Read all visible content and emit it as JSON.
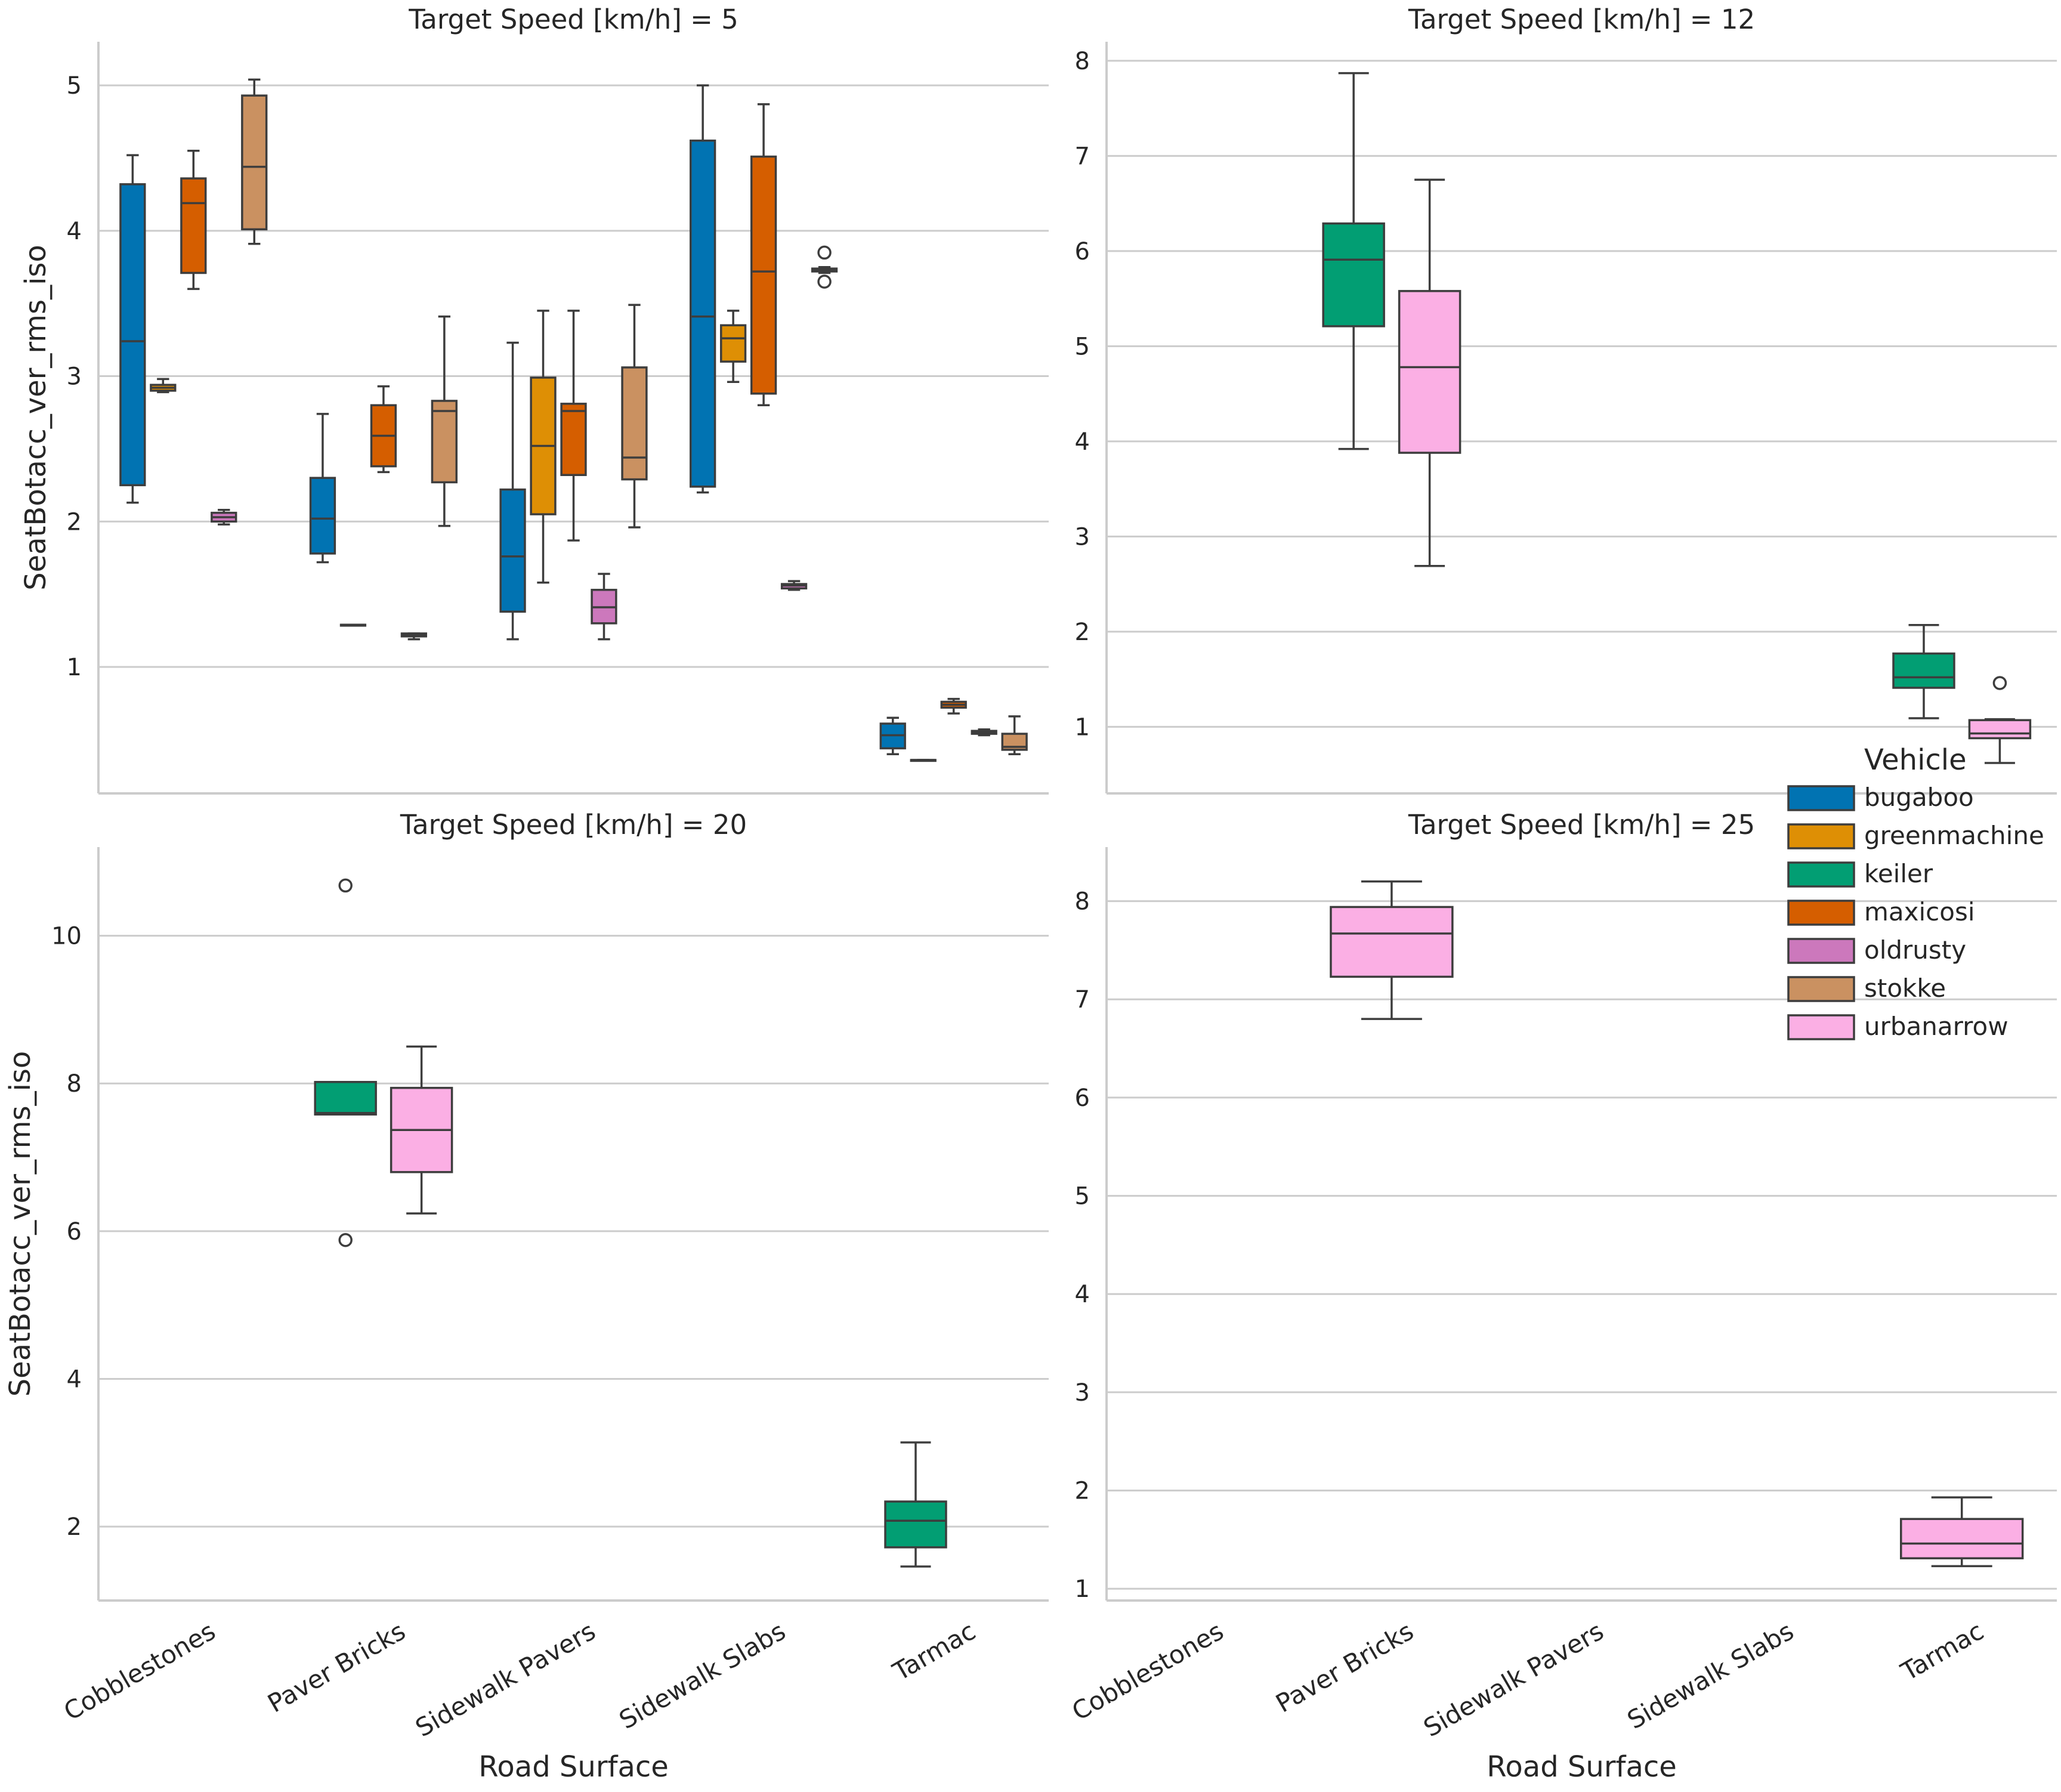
{
  "figure": {
    "xlabel": "Road Surface",
    "ylabel": "SeatBotacc_ver_rms_iso",
    "legend_title": "Vehicle",
    "legend_position": "right"
  },
  "colors": {
    "bugaboo": "#0173b2",
    "greenmachine": "#de8f05",
    "keiler": "#029e73",
    "maxicosi": "#d55e00",
    "oldrusty": "#cc78bc",
    "stokke": "#ca9161",
    "urbanarrow": "#fbafe4"
  },
  "chart_data": [
    {
      "type": "box",
      "title": "Target Speed [km/h] = 5",
      "categories": [
        "Cobblestones",
        "Paver Bricks",
        "Sidewalk Pavers",
        "Sidewalk Slabs",
        "Tarmac"
      ],
      "hue_order": [
        "bugaboo",
        "greenmachine",
        "maxicosi",
        "oldrusty",
        "stokke"
      ],
      "ylim": [
        0.13,
        5.3
      ],
      "yticks": [
        1,
        2,
        3,
        4,
        5
      ],
      "grid": true,
      "boxes": [
        {
          "category": "Cobblestones",
          "vehicle": "bugaboo",
          "whislo": 2.13,
          "q1": 2.25,
          "med": 3.24,
          "q3": 4.32,
          "whishi": 4.52,
          "fliers": []
        },
        {
          "category": "Cobblestones",
          "vehicle": "greenmachine",
          "whislo": 2.89,
          "q1": 2.9,
          "med": 2.92,
          "q3": 2.94,
          "whishi": 2.98,
          "fliers": []
        },
        {
          "category": "Cobblestones",
          "vehicle": "maxicosi",
          "whislo": 3.6,
          "q1": 3.71,
          "med": 4.19,
          "q3": 4.36,
          "whishi": 4.55,
          "fliers": []
        },
        {
          "category": "Cobblestones",
          "vehicle": "oldrusty",
          "whislo": 1.98,
          "q1": 2.0,
          "med": 2.03,
          "q3": 2.06,
          "whishi": 2.08,
          "fliers": []
        },
        {
          "category": "Cobblestones",
          "vehicle": "stokke",
          "whislo": 3.91,
          "q1": 4.01,
          "med": 4.44,
          "q3": 4.93,
          "whishi": 5.04,
          "fliers": []
        },
        {
          "category": "Paver Bricks",
          "vehicle": "bugaboo",
          "whislo": 1.72,
          "q1": 1.78,
          "med": 2.02,
          "q3": 2.3,
          "whishi": 2.74,
          "fliers": []
        },
        {
          "category": "Paver Bricks",
          "vehicle": "greenmachine",
          "whislo": 1.29,
          "q1": 1.29,
          "med": 1.29,
          "q3": 1.29,
          "whishi": 1.29,
          "fliers": []
        },
        {
          "category": "Paver Bricks",
          "vehicle": "maxicosi",
          "whislo": 2.34,
          "q1": 2.38,
          "med": 2.59,
          "q3": 2.8,
          "whishi": 2.93,
          "fliers": []
        },
        {
          "category": "Paver Bricks",
          "vehicle": "oldrusty",
          "whislo": 1.19,
          "q1": 1.21,
          "med": 1.22,
          "q3": 1.23,
          "whishi": 1.23,
          "fliers": []
        },
        {
          "category": "Paver Bricks",
          "vehicle": "stokke",
          "whislo": 1.97,
          "q1": 2.27,
          "med": 2.76,
          "q3": 2.83,
          "whishi": 3.41,
          "fliers": []
        },
        {
          "category": "Sidewalk Pavers",
          "vehicle": "bugaboo",
          "whislo": 1.19,
          "q1": 1.38,
          "med": 1.76,
          "q3": 2.22,
          "whishi": 3.23,
          "fliers": []
        },
        {
          "category": "Sidewalk Pavers",
          "vehicle": "greenmachine",
          "whislo": 1.58,
          "q1": 2.05,
          "med": 2.52,
          "q3": 2.99,
          "whishi": 3.45,
          "fliers": []
        },
        {
          "category": "Sidewalk Pavers",
          "vehicle": "maxicosi",
          "whislo": 1.87,
          "q1": 2.32,
          "med": 2.76,
          "q3": 2.81,
          "whishi": 3.45,
          "fliers": []
        },
        {
          "category": "Sidewalk Pavers",
          "vehicle": "oldrusty",
          "whislo": 1.19,
          "q1": 1.3,
          "med": 1.41,
          "q3": 1.53,
          "whishi": 1.64,
          "fliers": []
        },
        {
          "category": "Sidewalk Pavers",
          "vehicle": "stokke",
          "whislo": 1.96,
          "q1": 2.29,
          "med": 2.44,
          "q3": 3.06,
          "whishi": 3.49,
          "fliers": []
        },
        {
          "category": "Sidewalk Slabs",
          "vehicle": "bugaboo",
          "whislo": 2.2,
          "q1": 2.24,
          "med": 3.41,
          "q3": 4.62,
          "whishi": 5.0,
          "fliers": []
        },
        {
          "category": "Sidewalk Slabs",
          "vehicle": "greenmachine",
          "whislo": 2.96,
          "q1": 3.1,
          "med": 3.26,
          "q3": 3.35,
          "whishi": 3.45,
          "fliers": []
        },
        {
          "category": "Sidewalk Slabs",
          "vehicle": "maxicosi",
          "whislo": 2.8,
          "q1": 2.88,
          "med": 3.72,
          "q3": 4.51,
          "whishi": 4.87,
          "fliers": []
        },
        {
          "category": "Sidewalk Slabs",
          "vehicle": "oldrusty",
          "whislo": 1.53,
          "q1": 1.54,
          "med": 1.56,
          "q3": 1.57,
          "whishi": 1.59,
          "fliers": []
        },
        {
          "category": "Sidewalk Slabs",
          "vehicle": "stokke",
          "whislo": 3.71,
          "q1": 3.72,
          "med": 3.73,
          "q3": 3.74,
          "whishi": 3.75,
          "fliers": [
            3.65,
            3.85
          ]
        },
        {
          "category": "Tarmac",
          "vehicle": "bugaboo",
          "whislo": 0.4,
          "q1": 0.44,
          "med": 0.53,
          "q3": 0.61,
          "whishi": 0.65,
          "fliers": []
        },
        {
          "category": "Tarmac",
          "vehicle": "greenmachine",
          "whislo": 0.36,
          "q1": 0.36,
          "med": 0.36,
          "q3": 0.36,
          "whishi": 0.36,
          "fliers": []
        },
        {
          "category": "Tarmac",
          "vehicle": "maxicosi",
          "whislo": 0.68,
          "q1": 0.72,
          "med": 0.74,
          "q3": 0.76,
          "whishi": 0.78,
          "fliers": []
        },
        {
          "category": "Tarmac",
          "vehicle": "oldrusty",
          "whislo": 0.53,
          "q1": 0.54,
          "med": 0.55,
          "q3": 0.56,
          "whishi": 0.57,
          "fliers": []
        },
        {
          "category": "Tarmac",
          "vehicle": "stokke",
          "whislo": 0.4,
          "q1": 0.43,
          "med": 0.45,
          "q3": 0.54,
          "whishi": 0.66,
          "fliers": []
        }
      ]
    },
    {
      "type": "box",
      "title": "Target Speed [km/h] = 12",
      "categories": [
        "Cobblestones",
        "Paver Bricks",
        "Sidewalk Pavers",
        "Sidewalk Slabs",
        "Tarmac"
      ],
      "hue_order": [
        "keiler",
        "urbanarrow"
      ],
      "ylim": [
        0.3,
        8.2
      ],
      "yticks": [
        1,
        2,
        3,
        4,
        5,
        6,
        7,
        8
      ],
      "grid": true,
      "boxes": [
        {
          "category": "Paver Bricks",
          "vehicle": "keiler",
          "whislo": 3.92,
          "q1": 5.21,
          "med": 5.91,
          "q3": 6.29,
          "whishi": 7.87,
          "fliers": []
        },
        {
          "category": "Paver Bricks",
          "vehicle": "urbanarrow",
          "whislo": 2.69,
          "q1": 3.88,
          "med": 4.78,
          "q3": 5.58,
          "whishi": 6.75,
          "fliers": []
        },
        {
          "category": "Tarmac",
          "vehicle": "keiler",
          "whislo": 1.09,
          "q1": 1.41,
          "med": 1.52,
          "q3": 1.77,
          "whishi": 2.07,
          "fliers": []
        },
        {
          "category": "Tarmac",
          "vehicle": "urbanarrow",
          "whislo": 0.62,
          "q1": 0.88,
          "med": 0.93,
          "q3": 1.07,
          "whishi": 1.08,
          "fliers": [
            1.46
          ]
        }
      ]
    },
    {
      "type": "box",
      "title": "Target Speed [km/h] = 20",
      "categories": [
        "Cobblestones",
        "Paver Bricks",
        "Sidewalk Pavers",
        "Sidewalk Slabs",
        "Tarmac"
      ],
      "hue_order": [
        "keiler",
        "urbanarrow"
      ],
      "ylim": [
        1.0,
        11.2
      ],
      "yticks": [
        2,
        4,
        6,
        8,
        10
      ],
      "grid": true,
      "boxes": [
        {
          "category": "Paver Bricks",
          "vehicle": "keiler",
          "whislo": 7.58,
          "q1": 7.58,
          "med": 7.6,
          "q3": 8.02,
          "whishi": 8.02,
          "fliers": [
            5.88,
            10.68
          ]
        },
        {
          "category": "Paver Bricks",
          "vehicle": "urbanarrow",
          "whislo": 6.24,
          "q1": 6.8,
          "med": 7.37,
          "q3": 7.94,
          "whishi": 8.5,
          "fliers": []
        },
        {
          "category": "Tarmac",
          "vehicle": "keiler",
          "whislo": 1.46,
          "q1": 1.72,
          "med": 2.08,
          "q3": 2.34,
          "whishi": 3.14,
          "fliers": []
        }
      ]
    },
    {
      "type": "box",
      "title": "Target Speed [km/h] = 25",
      "categories": [
        "Cobblestones",
        "Paver Bricks",
        "Sidewalk Pavers",
        "Sidewalk Slabs",
        "Tarmac"
      ],
      "hue_order": [
        "urbanarrow"
      ],
      "ylim": [
        0.88,
        8.55
      ],
      "yticks": [
        1,
        2,
        3,
        4,
        5,
        6,
        7,
        8
      ],
      "grid": true,
      "boxes": [
        {
          "category": "Paver Bricks",
          "vehicle": "urbanarrow",
          "whislo": 6.8,
          "q1": 7.23,
          "med": 7.67,
          "q3": 7.94,
          "whishi": 8.2,
          "fliers": []
        },
        {
          "category": "Tarmac",
          "vehicle": "urbanarrow",
          "whislo": 1.23,
          "q1": 1.31,
          "med": 1.46,
          "q3": 1.71,
          "whishi": 1.93,
          "fliers": []
        }
      ]
    }
  ],
  "legend": {
    "title": "Vehicle",
    "items": [
      "bugaboo",
      "greenmachine",
      "keiler",
      "maxicosi",
      "oldrusty",
      "stokke",
      "urbanarrow"
    ]
  }
}
